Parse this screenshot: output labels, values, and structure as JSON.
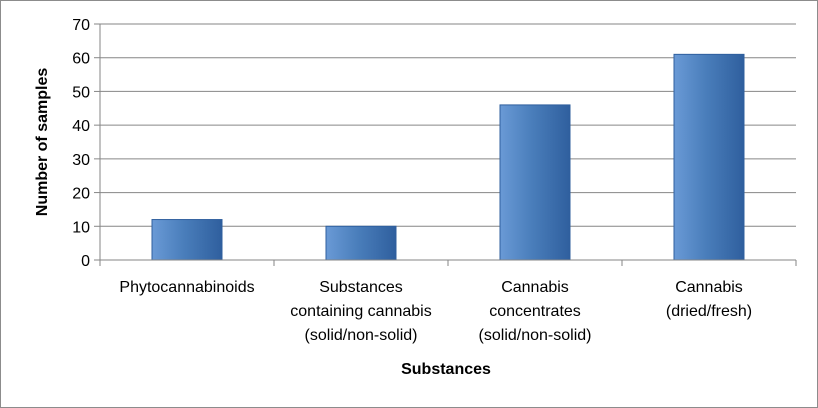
{
  "chart_data": {
    "type": "bar",
    "categories": [
      [
        "Phytocannabinoids"
      ],
      [
        "Substances",
        "containing cannabis",
        "(solid/non-solid)"
      ],
      [
        "Cannabis",
        "concentrates",
        "(solid/non-solid)"
      ],
      [
        "Cannabis",
        "(dried/fresh)"
      ]
    ],
    "values": [
      12,
      10,
      46,
      61
    ],
    "xlabel": "Substances",
    "ylabel": "Number of samples",
    "ylim": [
      0,
      70
    ],
    "yticks": [
      0,
      10,
      20,
      30,
      40,
      50,
      60,
      70
    ],
    "grid": true,
    "legend": "none",
    "bar_color": "#4a7ebb",
    "bar_color_light": "#6a9ad6",
    "bar_color_dark": "#2f5f9e"
  }
}
